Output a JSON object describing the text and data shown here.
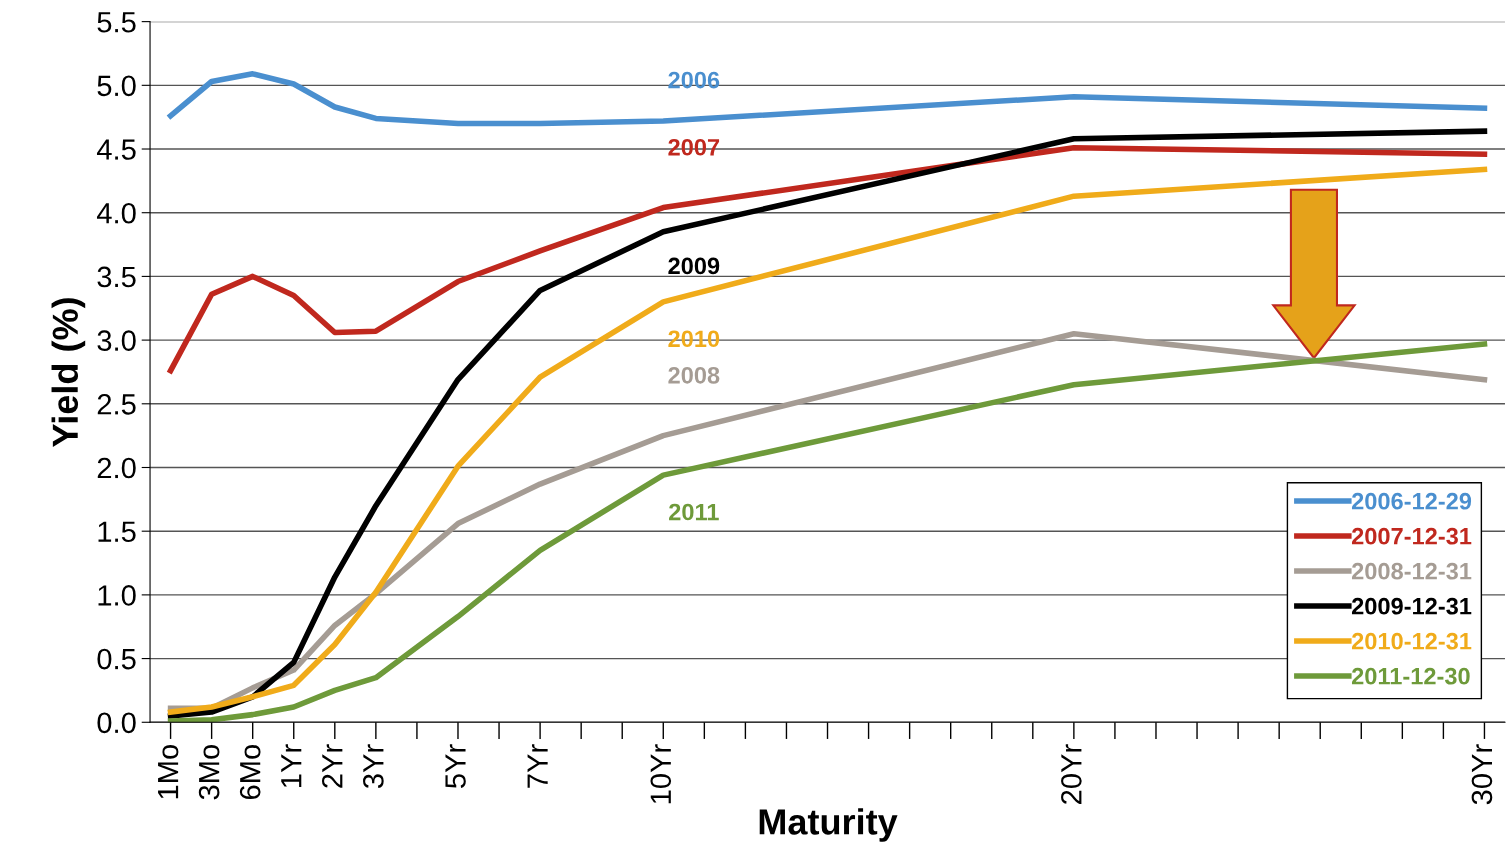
{
  "chart_data": {
    "type": "line",
    "xlabel": "Maturity",
    "ylabel": "Yield (%)",
    "categories": [
      "1Mo",
      "3Mo",
      "6Mo",
      "1Yr",
      "2Yr",
      "3Yr",
      null,
      "5Yr",
      null,
      "7Yr",
      null,
      null,
      "10Yr",
      null,
      null,
      null,
      null,
      null,
      null,
      null,
      null,
      null,
      "20Yr",
      null,
      null,
      null,
      null,
      null,
      null,
      null,
      null,
      null,
      "30Yr"
    ],
    "ylim": [
      0,
      5.5
    ],
    "yticks": [
      {
        "value": 0,
        "label": "0.0"
      },
      0.5,
      {
        "value": 1,
        "label": "1.0"
      },
      1.5,
      {
        "value": 2,
        "label": "2.0"
      },
      2.5,
      {
        "value": 3,
        "label": "3.0"
      },
      3.5,
      {
        "value": 4,
        "label": "4.0"
      },
      4.5,
      {
        "value": 5,
        "label": "5.0"
      },
      5.5
    ],
    "grid": "y",
    "legend": "bottom right",
    "marker": "none",
    "line_style": "solid",
    "series": [
      {
        "name": "2006-12-29",
        "color": "#4a8fcf",
        "values": [
          4.76,
          5.03,
          5.09,
          5.01,
          4.83,
          4.74,
          null,
          4.7,
          null,
          4.7,
          null,
          null,
          4.72,
          null,
          null,
          null,
          null,
          null,
          null,
          null,
          null,
          null,
          4.91,
          null,
          null,
          null,
          null,
          null,
          null,
          null,
          null,
          null,
          4.82
        ]
      },
      {
        "name": "2007-12-31",
        "color": "#c0281e",
        "values": [
          2.76,
          3.36,
          3.5,
          3.35,
          3.06,
          3.07,
          null,
          3.46,
          null,
          3.7,
          null,
          null,
          4.04,
          null,
          null,
          null,
          null,
          null,
          null,
          null,
          null,
          null,
          4.51,
          null,
          null,
          null,
          null,
          null,
          null,
          null,
          null,
          null,
          4.46
        ]
      },
      {
        "name": "2008-12-31",
        "color": "#a59c94",
        "values": [
          0.11,
          0.11,
          0.27,
          0.41,
          0.76,
          1.01,
          null,
          1.56,
          null,
          1.87,
          null,
          null,
          2.25,
          null,
          null,
          null,
          null,
          null,
          null,
          null,
          null,
          null,
          3.05,
          null,
          null,
          null,
          null,
          null,
          null,
          null,
          null,
          null,
          2.69
        ]
      },
      {
        "name": "2009-12-31",
        "color": "#000000",
        "values": [
          0.05,
          0.08,
          0.2,
          0.47,
          1.14,
          1.7,
          null,
          2.69,
          null,
          3.39,
          null,
          null,
          3.85,
          null,
          null,
          null,
          null,
          null,
          null,
          null,
          null,
          null,
          4.58,
          null,
          null,
          null,
          null,
          null,
          null,
          null,
          null,
          null,
          4.64
        ]
      },
      {
        "name": "2010-12-31",
        "color": "#f0ab1a",
        "values": [
          0.08,
          0.12,
          0.2,
          0.29,
          0.61,
          1.02,
          null,
          2.01,
          null,
          2.71,
          null,
          null,
          3.3,
          null,
          null,
          null,
          null,
          null,
          null,
          null,
          null,
          null,
          4.13,
          null,
          null,
          null,
          null,
          null,
          null,
          null,
          null,
          null,
          4.34
        ]
      },
      {
        "name": "2011-12-30",
        "color": "#6e9a3a",
        "values": [
          0.01,
          0.02,
          0.06,
          0.12,
          0.25,
          0.35,
          null,
          0.83,
          null,
          1.35,
          null,
          null,
          1.94,
          null,
          null,
          null,
          null,
          null,
          null,
          null,
          null,
          null,
          2.65,
          null,
          null,
          null,
          null,
          null,
          null,
          null,
          null,
          null,
          2.97
        ]
      }
    ],
    "annotations": [
      "2006",
      "2007",
      "2008",
      "2009",
      "2010",
      "2011"
    ]
  }
}
